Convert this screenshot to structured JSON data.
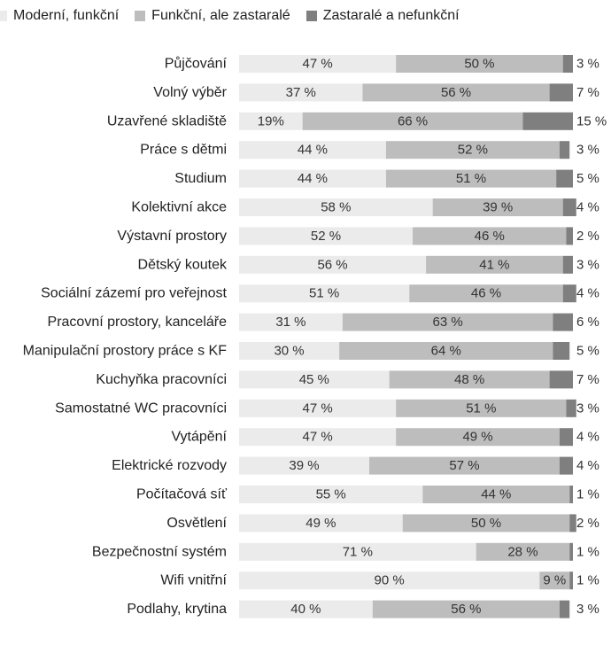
{
  "colors": {
    "series": [
      "#ebebeb",
      "#bdbdbd",
      "#7f7f7f"
    ]
  },
  "chart_data": {
    "type": "bar",
    "orientation": "horizontal",
    "stacked": true,
    "percent": true,
    "legend_position": "top",
    "grid": false,
    "xlim": [
      0,
      100
    ],
    "categories": [
      "Půjčování",
      "Volný výběr",
      "Uzavřené skladiště",
      "Práce s dětmi",
      "Studium",
      "Kolektivní akce",
      "Výstavní prostory",
      "Dětský koutek",
      "Sociální zázemí pro veřejnost",
      "Pracovní prostory, kanceláře",
      "Manipulační prostory práce s KF",
      "Kuchyňka pracovníci",
      "Samostatné WC pracovníci",
      "Vytápění",
      "Elektrické rozvody",
      "Počítačová síť",
      "Osvětlení",
      "Bezpečnostní systém",
      "Wifi vnitřní",
      "Podlahy, krytina"
    ],
    "series": [
      {
        "name": "Moderní, funkční",
        "values": [
          47,
          37,
          19,
          44,
          44,
          58,
          52,
          56,
          51,
          31,
          30,
          45,
          47,
          47,
          39,
          55,
          49,
          71,
          90,
          40
        ],
        "labels": [
          "47 %",
          "37 %",
          "19%",
          "44 %",
          "44 %",
          "58 %",
          "52 %",
          "56 %",
          "51 %",
          "31 %",
          "30 %",
          "45 %",
          "47 %",
          "47 %",
          "39 %",
          "55 %",
          "49 %",
          "71 %",
          "90 %",
          "40 %"
        ]
      },
      {
        "name": "Funkční, ale zastaralé",
        "values": [
          50,
          56,
          66,
          52,
          51,
          39,
          46,
          41,
          46,
          63,
          64,
          48,
          51,
          49,
          57,
          44,
          50,
          28,
          9,
          56
        ],
        "labels": [
          "50 %",
          "56 %",
          "66 %",
          "52 %",
          "51 %",
          "39 %",
          "46 %",
          "41 %",
          "46 %",
          "63 %",
          "64 %",
          "48 %",
          "51 %",
          "49 %",
          "57 %",
          "44 %",
          "50 %",
          "28 %",
          "9 %",
          "56 %"
        ]
      },
      {
        "name": "Zastaralé a nefunkční",
        "values": [
          3,
          7,
          15,
          3,
          5,
          4,
          2,
          3,
          4,
          6,
          5,
          7,
          3,
          4,
          4,
          1,
          2,
          1,
          1,
          3
        ],
        "labels": [
          "3 %",
          "7 %",
          "15 %",
          "3 %",
          "5 %",
          "4 %",
          "2 %",
          "3 %",
          "4 %",
          "6 %",
          "5 %",
          "7 %",
          "3 %",
          "4 %",
          "4 %",
          "1 %",
          "2 %",
          "1 %",
          "1 %",
          "3 %"
        ]
      }
    ]
  }
}
